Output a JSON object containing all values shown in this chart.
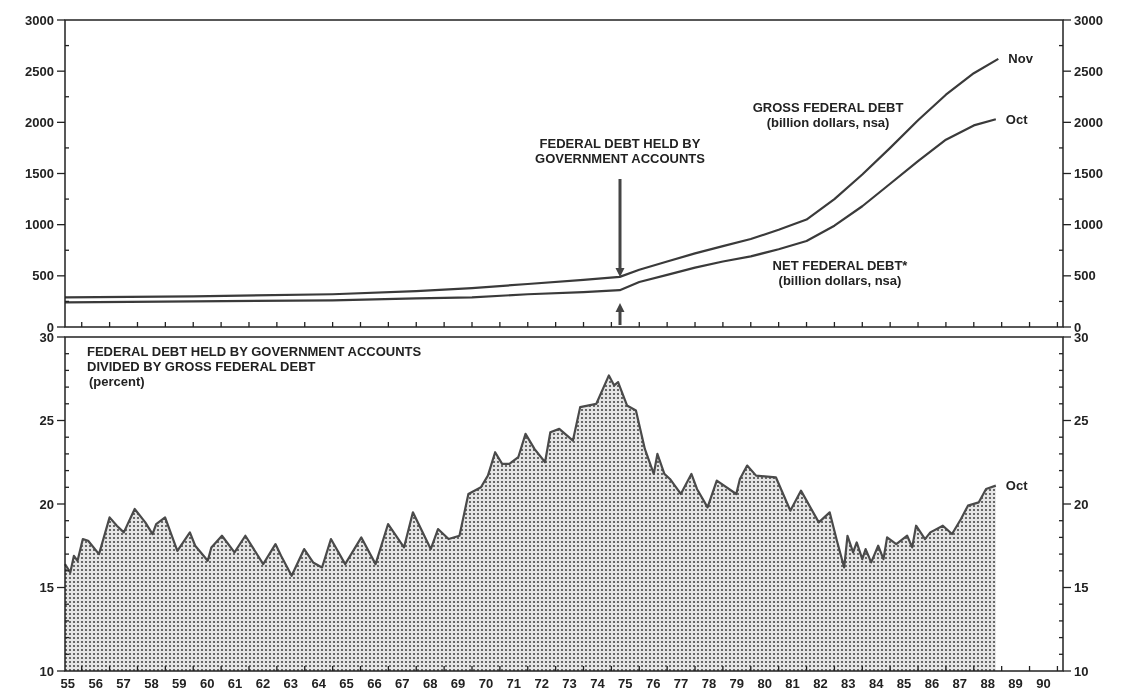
{
  "chart_data": [
    {
      "type": "line",
      "xlim": [
        54.9,
        90.7
      ],
      "ylim": [
        0,
        3000
      ],
      "y2lim": [
        0,
        3000
      ],
      "tick_labels": "y",
      "xticks": [
        55,
        56,
        57,
        58,
        59,
        60,
        61,
        62,
        63,
        64,
        65,
        66,
        67,
        68,
        69,
        70,
        71,
        72,
        73,
        74,
        75,
        76,
        77,
        78,
        79,
        80,
        81,
        82,
        83,
        84,
        85,
        86,
        87,
        88,
        89,
        90,
        {
          "value": 55.5,
          "label": null
        },
        {
          "value": 56.5,
          "label": null
        },
        {
          "value": 57.5,
          "label": null
        },
        {
          "value": 58.5,
          "label": null
        },
        {
          "value": 59.5,
          "label": null
        },
        {
          "value": 60.5,
          "label": null
        },
        {
          "value": 61.5,
          "label": null
        },
        {
          "value": 62.5,
          "label": null
        },
        {
          "value": 63.5,
          "label": null
        },
        {
          "value": 64.5,
          "label": null
        },
        {
          "value": 65.5,
          "label": null
        },
        {
          "value": 66.5,
          "label": null
        },
        {
          "value": 67.5,
          "label": null
        },
        {
          "value": 68.5,
          "label": null
        },
        {
          "value": 69.5,
          "label": null
        },
        {
          "value": 70.5,
          "label": null
        },
        {
          "value": 71.5,
          "label": null
        },
        {
          "value": 72.5,
          "label": null
        },
        {
          "value": 73.5,
          "label": null
        },
        {
          "value": 74.5,
          "label": null
        },
        {
          "value": 75.5,
          "label": null
        },
        {
          "value": 76.5,
          "label": null
        },
        {
          "value": 77.5,
          "label": null
        },
        {
          "value": 78.5,
          "label": null
        },
        {
          "value": 79.5,
          "label": null
        },
        {
          "value": 80.5,
          "label": null
        },
        {
          "value": 81.5,
          "label": null
        },
        {
          "value": 82.5,
          "label": null
        },
        {
          "value": 83.5,
          "label": null
        },
        {
          "value": 84.5,
          "label": null
        },
        {
          "value": 85.5,
          "label": null
        },
        {
          "value": 86.5,
          "label": null
        },
        {
          "value": 87.5,
          "label": null
        },
        {
          "value": 88.5,
          "label": null
        },
        {
          "value": 89.5,
          "label": null
        },
        {
          "value": 90.5,
          "label": null
        }
      ],
      "yticks": [
        0,
        {
          "value": 250,
          "label": null
        },
        500,
        {
          "value": 750,
          "label": null
        },
        1000,
        {
          "value": 1250,
          "label": null
        },
        1500,
        {
          "value": 1750,
          "label": null
        },
        2000,
        {
          "value": 2250,
          "label": null
        },
        2500,
        {
          "value": 2750,
          "label": null
        },
        3000
      ],
      "y2ticks": [
        0,
        {
          "value": 250,
          "label": null
        },
        500,
        {
          "value": 750,
          "label": null
        },
        1000,
        {
          "value": 1250,
          "label": null
        },
        1500,
        {
          "value": 1750,
          "label": null
        },
        2000,
        {
          "value": 2250,
          "label": null
        },
        2500,
        {
          "value": 2750,
          "label": null
        },
        3000
      ],
      "series": [
        {
          "name": "GROSS FEDERAL DEBT (billion dollars, nsa)",
          "color": "#3a3a3a",
          "x": [
            54.9,
            59.5,
            64.5,
            67.5,
            69.5,
            71.5,
            73.5,
            74.8,
            75.5,
            76.5,
            77.5,
            78.5,
            79.5,
            80.5,
            81.5,
            82.5,
            83.5,
            84.5,
            85.5,
            86.5,
            87.5,
            88.38
          ],
          "values": [
            290,
            300,
            320,
            350,
            380,
            420,
            460,
            490,
            560,
            640,
            720,
            790,
            860,
            950,
            1050,
            1250,
            1490,
            1750,
            2020,
            2270,
            2480,
            2620
          ]
        },
        {
          "name": "NET FEDERAL DEBT* (billion dollars, nsa)",
          "color": "#3a3a3a",
          "x": [
            54.9,
            59.5,
            64.5,
            67.5,
            69.5,
            71.5,
            73.5,
            74.8,
            75.5,
            76.5,
            77.5,
            78.5,
            79.5,
            80.5,
            81.5,
            82.5,
            83.5,
            84.5,
            85.5,
            86.5,
            87.5,
            88.29
          ],
          "values": [
            240,
            250,
            260,
            280,
            290,
            320,
            340,
            360,
            440,
            510,
            580,
            640,
            690,
            760,
            840,
            990,
            1180,
            1400,
            1620,
            1830,
            1970,
            2030
          ]
        }
      ],
      "annotations": [
        "FEDERAL DEBT HELD BY GOVERNMENT ACCOUNTS",
        "Nov",
        "Oct"
      ]
    },
    {
      "type": "area",
      "title": "FEDERAL DEBT HELD BY GOVERNMENT ACCOUNTS DIVIDED BY GROSS FEDERAL DEBT",
      "subtitle": "(percent)",
      "xlim": [
        54.9,
        90.7
      ],
      "ylim": [
        10,
        30
      ],
      "y2lim": [
        10,
        30
      ],
      "color": "#4a4a4a",
      "xticks": [
        55,
        56,
        57,
        58,
        59,
        60,
        61,
        62,
        63,
        64,
        65,
        66,
        67,
        68,
        69,
        70,
        71,
        72,
        73,
        74,
        75,
        76,
        77,
        78,
        79,
        80,
        81,
        82,
        83,
        84,
        85,
        86,
        87,
        88,
        89,
        90,
        {
          "value": 55.5,
          "label": null
        },
        {
          "value": 56.5,
          "label": null
        },
        {
          "value": 57.5,
          "label": null
        },
        {
          "value": 58.5,
          "label": null
        },
        {
          "value": 59.5,
          "label": null
        },
        {
          "value": 60.5,
          "label": null
        },
        {
          "value": 61.5,
          "label": null
        },
        {
          "value": 62.5,
          "label": null
        },
        {
          "value": 63.5,
          "label": null
        },
        {
          "value": 64.5,
          "label": null
        },
        {
          "value": 65.5,
          "label": null
        },
        {
          "value": 66.5,
          "label": null
        },
        {
          "value": 67.5,
          "label": null
        },
        {
          "value": 68.5,
          "label": null
        },
        {
          "value": 69.5,
          "label": null
        },
        {
          "value": 70.5,
          "label": null
        },
        {
          "value": 71.5,
          "label": null
        },
        {
          "value": 72.5,
          "label": null
        },
        {
          "value": 73.5,
          "label": null
        },
        {
          "value": 74.5,
          "label": null
        },
        {
          "value": 75.5,
          "label": null
        },
        {
          "value": 76.5,
          "label": null
        },
        {
          "value": 77.5,
          "label": null
        },
        {
          "value": 78.5,
          "label": null
        },
        {
          "value": 79.5,
          "label": null
        },
        {
          "value": 80.5,
          "label": null
        },
        {
          "value": 81.5,
          "label": null
        },
        {
          "value": 82.5,
          "label": null
        },
        {
          "value": 83.5,
          "label": null
        },
        {
          "value": 84.5,
          "label": null
        },
        {
          "value": 85.5,
          "label": null
        },
        {
          "value": 86.5,
          "label": null
        },
        {
          "value": 87.5,
          "label": null
        },
        {
          "value": 88.5,
          "label": null
        },
        {
          "value": 89.5,
          "label": null
        },
        {
          "value": 90.5,
          "label": null
        }
      ],
      "yticks": [
        10,
        {
          "value": 11,
          "label": null
        },
        {
          "value": 12,
          "label": null
        },
        {
          "value": 13,
          "label": null
        },
        {
          "value": 14,
          "label": null
        },
        15,
        {
          "value": 16,
          "label": null
        },
        {
          "value": 17,
          "label": null
        },
        {
          "value": 18,
          "label": null
        },
        {
          "value": 19,
          "label": null
        },
        20,
        {
          "value": 21,
          "label": null
        },
        {
          "value": 22,
          "label": null
        },
        {
          "value": 23,
          "label": null
        },
        {
          "value": 24,
          "label": null
        },
        25,
        {
          "value": 26,
          "label": null
        },
        {
          "value": 27,
          "label": null
        },
        {
          "value": 28,
          "label": null
        },
        {
          "value": 29,
          "label": null
        },
        30
      ],
      "y2ticks": [
        10,
        {
          "value": 11,
          "label": null
        },
        {
          "value": 12,
          "label": null
        },
        {
          "value": 13,
          "label": null
        },
        {
          "value": 14,
          "label": null
        },
        15,
        {
          "value": 16,
          "label": null
        },
        {
          "value": 17,
          "label": null
        },
        {
          "value": 18,
          "label": null
        },
        {
          "value": 19,
          "label": null
        },
        20,
        {
          "value": 21,
          "label": null
        },
        {
          "value": 22,
          "label": null
        },
        {
          "value": 23,
          "label": null
        },
        {
          "value": 24,
          "label": null
        },
        25,
        {
          "value": 26,
          "label": null
        },
        {
          "value": 27,
          "label": null
        },
        {
          "value": 28,
          "label": null
        },
        {
          "value": 29,
          "label": null
        },
        30
      ],
      "x": [
        54.9,
        55.09,
        55.22,
        55.35,
        55.54,
        55.73,
        56.12,
        56.5,
        56.76,
        57.01,
        57.4,
        57.78,
        58.04,
        58.17,
        58.49,
        58.93,
        59.38,
        59.57,
        60.02,
        60.15,
        60.53,
        60.98,
        61.37,
        62.01,
        62.45,
        62.65,
        63.03,
        63.48,
        63.8,
        64.12,
        64.44,
        64.95,
        65.53,
        66.04,
        66.49,
        67.06,
        67.38,
        68.02,
        68.28,
        68.66,
        69.05,
        69.37,
        69.82,
        70.07,
        70.33,
        70.58,
        70.84,
        71.16,
        71.42,
        71.74,
        72.12,
        72.31,
        72.63,
        73.12,
        73.38,
        73.96,
        74.41,
        74.6,
        74.74,
        75.06,
        75.38,
        75.7,
        76.02,
        76.15,
        76.4,
        76.6,
        76.99,
        77.37,
        77.57,
        77.95,
        78.28,
        78.98,
        79.11,
        79.37,
        79.69,
        80.4,
        80.92,
        81.3,
        81.94,
        82.33,
        82.59,
        82.85,
        82.97,
        83.17,
        83.3,
        83.5,
        83.62,
        83.82,
        84.07,
        84.26,
        84.39,
        84.72,
        85.11,
        85.29,
        85.43,
        85.75,
        85.94,
        86.39,
        86.72,
        87.04,
        87.29,
        87.68,
        87.94,
        88.29
      ],
      "values": [
        16.4,
        15.9,
        16.9,
        16.6,
        17.9,
        17.8,
        17.0,
        19.2,
        18.7,
        18.3,
        19.7,
        18.9,
        18.2,
        18.8,
        19.2,
        17.2,
        18.3,
        17.5,
        16.6,
        17.4,
        18.1,
        17.1,
        18.1,
        16.4,
        17.6,
        16.9,
        15.7,
        17.3,
        16.5,
        16.2,
        17.9,
        16.4,
        18.0,
        16.4,
        18.8,
        17.4,
        19.5,
        17.3,
        18.5,
        17.9,
        18.1,
        20.6,
        21.0,
        21.7,
        23.1,
        22.4,
        22.4,
        22.8,
        24.2,
        23.3,
        22.5,
        24.3,
        24.5,
        23.8,
        25.8,
        26.0,
        27.7,
        27.1,
        27.3,
        25.9,
        25.6,
        23.3,
        21.8,
        23.0,
        21.8,
        21.5,
        20.6,
        21.8,
        20.9,
        19.8,
        21.4,
        20.6,
        21.5,
        22.3,
        21.7,
        21.6,
        19.6,
        20.8,
        18.9,
        19.5,
        17.8,
        16.2,
        18.1,
        17.1,
        17.7,
        16.7,
        17.3,
        16.5,
        17.5,
        16.7,
        18.0,
        17.6,
        18.1,
        17.4,
        18.7,
        17.9,
        18.3,
        18.7,
        18.2,
        19.1,
        19.9,
        20.1,
        20.9,
        21.1
      ],
      "annotations": [
        "Oct"
      ]
    }
  ]
}
